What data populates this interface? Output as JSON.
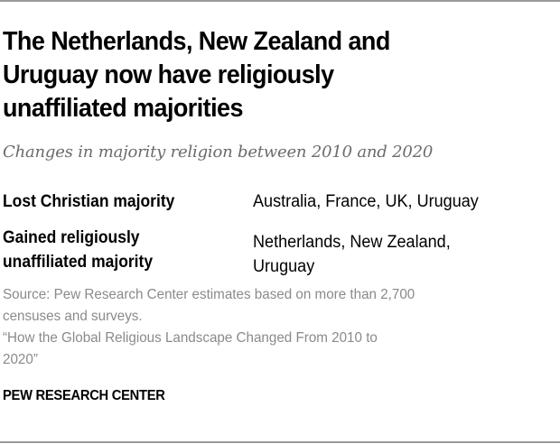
{
  "chart_data": {
    "type": "table",
    "title": "The Netherlands, New Zealand and Uruguay now have religiously unaffiliated majorities",
    "subtitle": "Changes in majority religion between 2010 and 2020",
    "rows": [
      {
        "category": "Lost Christian majority",
        "countries": [
          "Australia",
          "France",
          "UK",
          "Uruguay"
        ]
      },
      {
        "category": "Gained religiously unaffiliated majority",
        "countries": [
          "Netherlands",
          "New Zealand",
          "Uruguay"
        ]
      }
    ],
    "source": "Source: Pew Research Center estimates based on more than 2,700 censuses and surveys.",
    "report": "“How the Global Religious Landscape Changed From 2010 to 2020”",
    "brand": "PEW RESEARCH CENTER"
  },
  "header": {
    "title_lines": [
      "The Netherlands, New Zealand and",
      "Uruguay now have religiously",
      "unaffiliated majorities"
    ],
    "subtitle": "Changes in majority religion between 2010 and 2020"
  },
  "table": {
    "rows": [
      {
        "label_lines": [
          "Lost Christian majority"
        ],
        "value_lines": [
          "Australia, France, UK, Uruguay"
        ]
      },
      {
        "label_lines": [
          "Gained religiously",
          "unaffiliated majority"
        ],
        "value_lines": [
          "Netherlands, New Zealand,",
          "Uruguay"
        ]
      }
    ]
  },
  "footer": {
    "source_lines": [
      "Source: Pew Research Center estimates based on more than 2,700",
      "censuses and surveys.",
      "“How the Global Religious Landscape Changed From 2010 to",
      "2020”"
    ],
    "brand": "PEW RESEARCH CENTER"
  },
  "colors": {
    "rule": "#9a9a9a",
    "title": "#000000",
    "subtitle": "#6b6b6b",
    "source": "#8a8a8a"
  }
}
